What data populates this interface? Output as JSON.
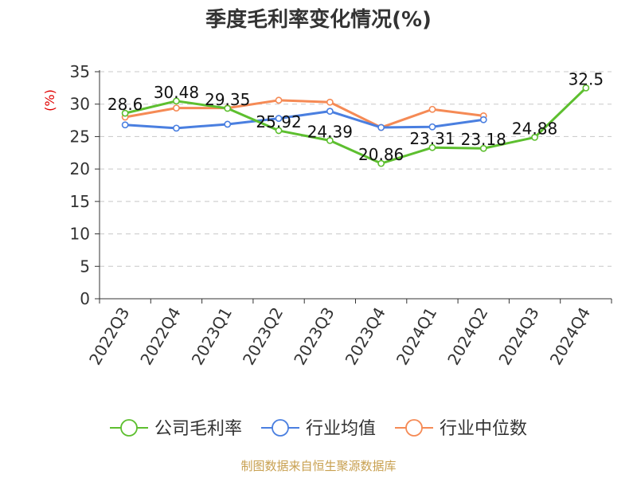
{
  "chart_data": {
    "type": "line",
    "title": "季度毛利率变化情况(%)",
    "ylabel": "(%)",
    "ylim": [
      0,
      35
    ],
    "yticks": [
      0,
      5,
      10,
      15,
      20,
      25,
      30,
      35
    ],
    "grid": true,
    "legend_position": "bottom",
    "categories": [
      "2022Q3",
      "2022Q4",
      "2023Q1",
      "2023Q2",
      "2023Q3",
      "2023Q4",
      "2024Q1",
      "2024Q2",
      "2024Q3",
      "2024Q4"
    ],
    "series": [
      {
        "name": "公司毛利率",
        "color": "#5dbf2f",
        "labeled": true,
        "values": [
          28.6,
          30.48,
          29.35,
          25.92,
          24.39,
          20.86,
          23.31,
          23.18,
          24.88,
          32.5
        ]
      },
      {
        "name": "行业均值",
        "color": "#4a7fe0",
        "labeled": false,
        "values": [
          26.8,
          26.3,
          26.9,
          27.8,
          28.9,
          26.4,
          26.5,
          27.6,
          null,
          null
        ]
      },
      {
        "name": "行业中位数",
        "color": "#f58a55",
        "labeled": false,
        "values": [
          28.0,
          29.4,
          29.4,
          30.6,
          30.3,
          26.4,
          29.2,
          28.2,
          null,
          null
        ]
      }
    ]
  },
  "source": "制图数据来自恒生聚源数据库"
}
